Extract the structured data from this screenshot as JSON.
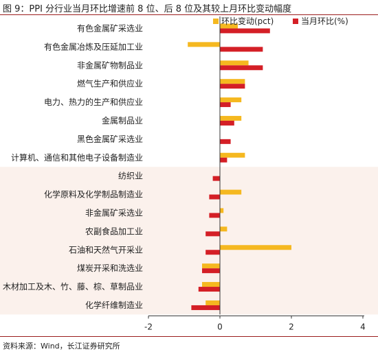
{
  "title": "图 9：PPI 分行业当月环比增速前 8 位、后 8 位及其较上月环比变动幅度",
  "source": "资料来源：Wind，长江证券研究所",
  "chart_data": {
    "type": "bar",
    "orientation": "horizontal",
    "categories": [
      "有色金属矿采选业",
      "有色金属冶炼及压延加工业",
      "非金属矿物制品业",
      "燃气生产和供应业",
      "电力、热力的生产和供应业",
      "金属制品业",
      "黑色金属矿采选业",
      "计算机、通信和其他电子设备制造业",
      "纺织业",
      "化学原料及化学制品制造业",
      "非金属矿采选业",
      "农副食品加工业",
      "石油和天然气开采业",
      "煤炭开采和洗选业",
      "木材加工及木、竹、藤、棕、草制品业",
      "化学纤维制造业"
    ],
    "series": [
      {
        "name": "环比变动(pct)",
        "color": "#f5b820",
        "values": [
          0.5,
          -0.9,
          0.8,
          0.7,
          0.6,
          0.6,
          0.0,
          0.7,
          0.0,
          0.6,
          0.1,
          0.2,
          2.0,
          -0.5,
          -0.5,
          -0.4
        ]
      },
      {
        "name": "当月环比(%)",
        "color": "#d41f26",
        "values": [
          1.4,
          1.2,
          1.2,
          0.7,
          0.3,
          0.4,
          0.3,
          0.2,
          -0.2,
          -0.3,
          -0.3,
          -0.4,
          -0.4,
          -0.5,
          -0.6,
          -0.8
        ]
      }
    ],
    "xlim": [
      -2,
      4
    ],
    "xticks": [
      "-2",
      "0",
      "2",
      "4"
    ],
    "highlight_band": {
      "from_index": 8,
      "to_index": 15,
      "color": "#fbf1ec"
    },
    "legend": "top-right"
  }
}
